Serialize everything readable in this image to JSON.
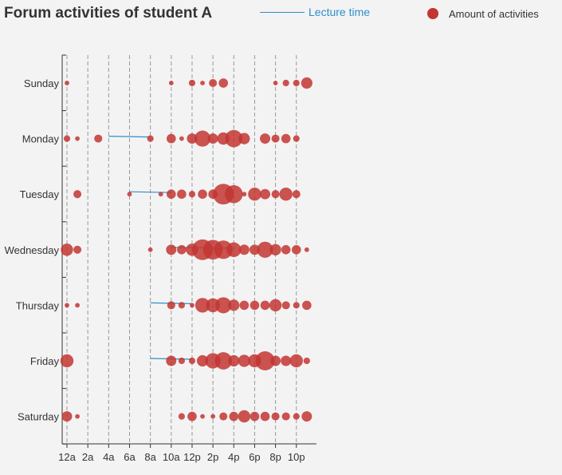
{
  "chart_data": {
    "type": "scatter",
    "title": "Forum activities of student A",
    "legend": [
      {
        "name": "Lecture time",
        "kind": "line",
        "color": "#2e8fc9"
      },
      {
        "name": "Amount of activities",
        "kind": "dot",
        "color": "#c23531"
      }
    ],
    "legend_placement": "top-right",
    "x_tick_labels": [
      "12a",
      "2a",
      "4a",
      "6a",
      "8a",
      "10a",
      "12p",
      "2p",
      "4p",
      "6p",
      "8p",
      "10p"
    ],
    "x_range_hours": [
      0,
      23
    ],
    "y_categories": [
      "Sunday",
      "Monday",
      "Tuesday",
      "Wednesday",
      "Thursday",
      "Friday",
      "Saturday"
    ],
    "grid": "vertical dashed lines at each x tick",
    "activities": [
      {
        "day": "Sunday",
        "hour": 0,
        "amount": 1
      },
      {
        "day": "Sunday",
        "hour": 10,
        "amount": 1
      },
      {
        "day": "Sunday",
        "hour": 12,
        "amount": 2
      },
      {
        "day": "Sunday",
        "hour": 13,
        "amount": 1
      },
      {
        "day": "Sunday",
        "hour": 14,
        "amount": 3
      },
      {
        "day": "Sunday",
        "hour": 15,
        "amount": 4
      },
      {
        "day": "Sunday",
        "hour": 20,
        "amount": 1
      },
      {
        "day": "Sunday",
        "hour": 21,
        "amount": 2
      },
      {
        "day": "Sunday",
        "hour": 22,
        "amount": 2
      },
      {
        "day": "Sunday",
        "hour": 23,
        "amount": 6
      },
      {
        "day": "Monday",
        "hour": 0,
        "amount": 2
      },
      {
        "day": "Monday",
        "hour": 1,
        "amount": 1
      },
      {
        "day": "Monday",
        "hour": 3,
        "amount": 3
      },
      {
        "day": "Monday",
        "hour": 8,
        "amount": 2
      },
      {
        "day": "Monday",
        "hour": 10,
        "amount": 4
      },
      {
        "day": "Monday",
        "hour": 11,
        "amount": 1
      },
      {
        "day": "Monday",
        "hour": 12,
        "amount": 5
      },
      {
        "day": "Monday",
        "hour": 13,
        "amount": 12
      },
      {
        "day": "Monday",
        "hour": 14,
        "amount": 5
      },
      {
        "day": "Monday",
        "hour": 15,
        "amount": 7
      },
      {
        "day": "Monday",
        "hour": 16,
        "amount": 14
      },
      {
        "day": "Monday",
        "hour": 17,
        "amount": 6
      },
      {
        "day": "Monday",
        "hour": 19,
        "amount": 5
      },
      {
        "day": "Monday",
        "hour": 20,
        "amount": 3
      },
      {
        "day": "Monday",
        "hour": 21,
        "amount": 4
      },
      {
        "day": "Monday",
        "hour": 22,
        "amount": 2
      },
      {
        "day": "Tuesday",
        "hour": 1,
        "amount": 3
      },
      {
        "day": "Tuesday",
        "hour": 6,
        "amount": 1
      },
      {
        "day": "Tuesday",
        "hour": 9,
        "amount": 1
      },
      {
        "day": "Tuesday",
        "hour": 10,
        "amount": 4
      },
      {
        "day": "Tuesday",
        "hour": 11,
        "amount": 4
      },
      {
        "day": "Tuesday",
        "hour": 12,
        "amount": 2
      },
      {
        "day": "Tuesday",
        "hour": 13,
        "amount": 4
      },
      {
        "day": "Tuesday",
        "hour": 14,
        "amount": 4
      },
      {
        "day": "Tuesday",
        "hour": 15,
        "amount": 20
      },
      {
        "day": "Tuesday",
        "hour": 16,
        "amount": 15
      },
      {
        "day": "Tuesday",
        "hour": 17,
        "amount": 1
      },
      {
        "day": "Tuesday",
        "hour": 18,
        "amount": 8
      },
      {
        "day": "Tuesday",
        "hour": 19,
        "amount": 5
      },
      {
        "day": "Tuesday",
        "hour": 20,
        "amount": 3
      },
      {
        "day": "Tuesday",
        "hour": 21,
        "amount": 8
      },
      {
        "day": "Tuesday",
        "hour": 22,
        "amount": 3
      },
      {
        "day": "Wednesday",
        "hour": 0,
        "amount": 7
      },
      {
        "day": "Wednesday",
        "hour": 1,
        "amount": 3
      },
      {
        "day": "Wednesday",
        "hour": 8,
        "amount": 1
      },
      {
        "day": "Wednesday",
        "hour": 10,
        "amount": 5
      },
      {
        "day": "Wednesday",
        "hour": 11,
        "amount": 4
      },
      {
        "day": "Wednesday",
        "hour": 12,
        "amount": 7
      },
      {
        "day": "Wednesday",
        "hour": 13,
        "amount": 20
      },
      {
        "day": "Wednesday",
        "hour": 14,
        "amount": 18
      },
      {
        "day": "Wednesday",
        "hour": 15,
        "amount": 16
      },
      {
        "day": "Wednesday",
        "hour": 16,
        "amount": 10
      },
      {
        "day": "Wednesday",
        "hour": 17,
        "amount": 5
      },
      {
        "day": "Wednesday",
        "hour": 18,
        "amount": 5
      },
      {
        "day": "Wednesday",
        "hour": 19,
        "amount": 12
      },
      {
        "day": "Wednesday",
        "hour": 20,
        "amount": 6
      },
      {
        "day": "Wednesday",
        "hour": 21,
        "amount": 4
      },
      {
        "day": "Wednesday",
        "hour": 22,
        "amount": 4
      },
      {
        "day": "Wednesday",
        "hour": 23,
        "amount": 1
      },
      {
        "day": "Thursday",
        "hour": 0,
        "amount": 1
      },
      {
        "day": "Thursday",
        "hour": 1,
        "amount": 1
      },
      {
        "day": "Thursday",
        "hour": 10,
        "amount": 3
      },
      {
        "day": "Thursday",
        "hour": 11,
        "amount": 2
      },
      {
        "day": "Thursday",
        "hour": 12,
        "amount": 1
      },
      {
        "day": "Thursday",
        "hour": 13,
        "amount": 10
      },
      {
        "day": "Thursday",
        "hour": 14,
        "amount": 9
      },
      {
        "day": "Thursday",
        "hour": 15,
        "amount": 12
      },
      {
        "day": "Thursday",
        "hour": 16,
        "amount": 6
      },
      {
        "day": "Thursday",
        "hour": 17,
        "amount": 4
      },
      {
        "day": "Thursday",
        "hour": 18,
        "amount": 4
      },
      {
        "day": "Thursday",
        "hour": 19,
        "amount": 4
      },
      {
        "day": "Thursday",
        "hour": 20,
        "amount": 7
      },
      {
        "day": "Thursday",
        "hour": 21,
        "amount": 3
      },
      {
        "day": "Thursday",
        "hour": 22,
        "amount": 2
      },
      {
        "day": "Thursday",
        "hour": 23,
        "amount": 4
      },
      {
        "day": "Friday",
        "hour": 0,
        "amount": 8
      },
      {
        "day": "Friday",
        "hour": 10,
        "amount": 5
      },
      {
        "day": "Friday",
        "hour": 11,
        "amount": 2
      },
      {
        "day": "Friday",
        "hour": 12,
        "amount": 2
      },
      {
        "day": "Friday",
        "hour": 13,
        "amount": 6
      },
      {
        "day": "Friday",
        "hour": 14,
        "amount": 11
      },
      {
        "day": "Friday",
        "hour": 15,
        "amount": 14
      },
      {
        "day": "Friday",
        "hour": 16,
        "amount": 6
      },
      {
        "day": "Friday",
        "hour": 17,
        "amount": 7
      },
      {
        "day": "Friday",
        "hour": 18,
        "amount": 8
      },
      {
        "day": "Friday",
        "hour": 19,
        "amount": 17
      },
      {
        "day": "Friday",
        "hour": 20,
        "amount": 5
      },
      {
        "day": "Friday",
        "hour": 21,
        "amount": 5
      },
      {
        "day": "Friday",
        "hour": 22,
        "amount": 8
      },
      {
        "day": "Friday",
        "hour": 23,
        "amount": 2
      },
      {
        "day": "Saturday",
        "hour": 0,
        "amount": 5
      },
      {
        "day": "Saturday",
        "hour": 1,
        "amount": 1
      },
      {
        "day": "Saturday",
        "hour": 11,
        "amount": 2
      },
      {
        "day": "Saturday",
        "hour": 12,
        "amount": 4
      },
      {
        "day": "Saturday",
        "hour": 13,
        "amount": 1
      },
      {
        "day": "Saturday",
        "hour": 14,
        "amount": 1
      },
      {
        "day": "Saturday",
        "hour": 15,
        "amount": 3
      },
      {
        "day": "Saturday",
        "hour": 16,
        "amount": 4
      },
      {
        "day": "Saturday",
        "hour": 17,
        "amount": 7
      },
      {
        "day": "Saturday",
        "hour": 18,
        "amount": 4
      },
      {
        "day": "Saturday",
        "hour": 19,
        "amount": 4
      },
      {
        "day": "Saturday",
        "hour": 20,
        "amount": 3
      },
      {
        "day": "Saturday",
        "hour": 21,
        "amount": 3
      },
      {
        "day": "Saturday",
        "hour": 22,
        "amount": 2
      },
      {
        "day": "Saturday",
        "hour": 23,
        "amount": 5
      }
    ],
    "lectures": [
      {
        "day": "Monday",
        "start_hour": 4,
        "end_hour": 8
      },
      {
        "day": "Tuesday",
        "start_hour": 6,
        "end_hour": 10
      },
      {
        "day": "Wednesday",
        "start_hour": 10,
        "end_hour": 16
      },
      {
        "day": "Thursday",
        "start_hour": 8,
        "end_hour": 12
      },
      {
        "day": "Friday",
        "start_hour": 8,
        "end_hour": 12
      }
    ]
  }
}
